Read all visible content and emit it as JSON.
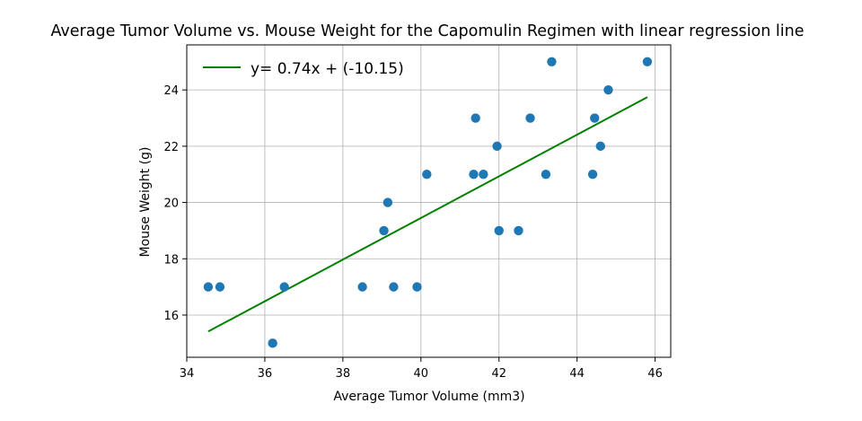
{
  "chart_data": {
    "type": "scatter",
    "title": "Average Tumor Volume vs. Mouse Weight for the Capomulin Regimen with linear regression line",
    "xlabel": "Average Tumor Volume (mm3)",
    "ylabel": "Mouse Weight (g)",
    "xlim": [
      34,
      46.4
    ],
    "ylim": [
      14.5,
      25.6
    ],
    "xticks": [
      34,
      36,
      38,
      40,
      42,
      44,
      46
    ],
    "yticks": [
      16,
      18,
      20,
      22,
      24
    ],
    "grid": true,
    "legend_position": "top-left",
    "colors": {
      "points": "#1f77b4",
      "regression": "#008000",
      "grid": "#b0b0b0"
    },
    "points": [
      {
        "x": 34.55,
        "y": 17
      },
      {
        "x": 34.85,
        "y": 17
      },
      {
        "x": 36.2,
        "y": 15
      },
      {
        "x": 36.5,
        "y": 17
      },
      {
        "x": 38.5,
        "y": 17
      },
      {
        "x": 39.05,
        "y": 19
      },
      {
        "x": 39.15,
        "y": 20
      },
      {
        "x": 39.3,
        "y": 17
      },
      {
        "x": 39.9,
        "y": 17
      },
      {
        "x": 40.15,
        "y": 21
      },
      {
        "x": 41.35,
        "y": 21
      },
      {
        "x": 41.4,
        "y": 23
      },
      {
        "x": 41.6,
        "y": 21
      },
      {
        "x": 41.95,
        "y": 22
      },
      {
        "x": 42.0,
        "y": 19
      },
      {
        "x": 42.5,
        "y": 19
      },
      {
        "x": 42.8,
        "y": 23
      },
      {
        "x": 43.2,
        "y": 21
      },
      {
        "x": 43.35,
        "y": 25
      },
      {
        "x": 44.4,
        "y": 21
      },
      {
        "x": 44.45,
        "y": 23
      },
      {
        "x": 44.6,
        "y": 22
      },
      {
        "x": 44.8,
        "y": 24
      },
      {
        "x": 45.8,
        "y": 25
      }
    ],
    "regression": {
      "label": "y= 0.74x + (-10.15)",
      "slope": 0.74,
      "intercept": -10.15,
      "x_range": [
        34.55,
        45.8
      ]
    }
  }
}
